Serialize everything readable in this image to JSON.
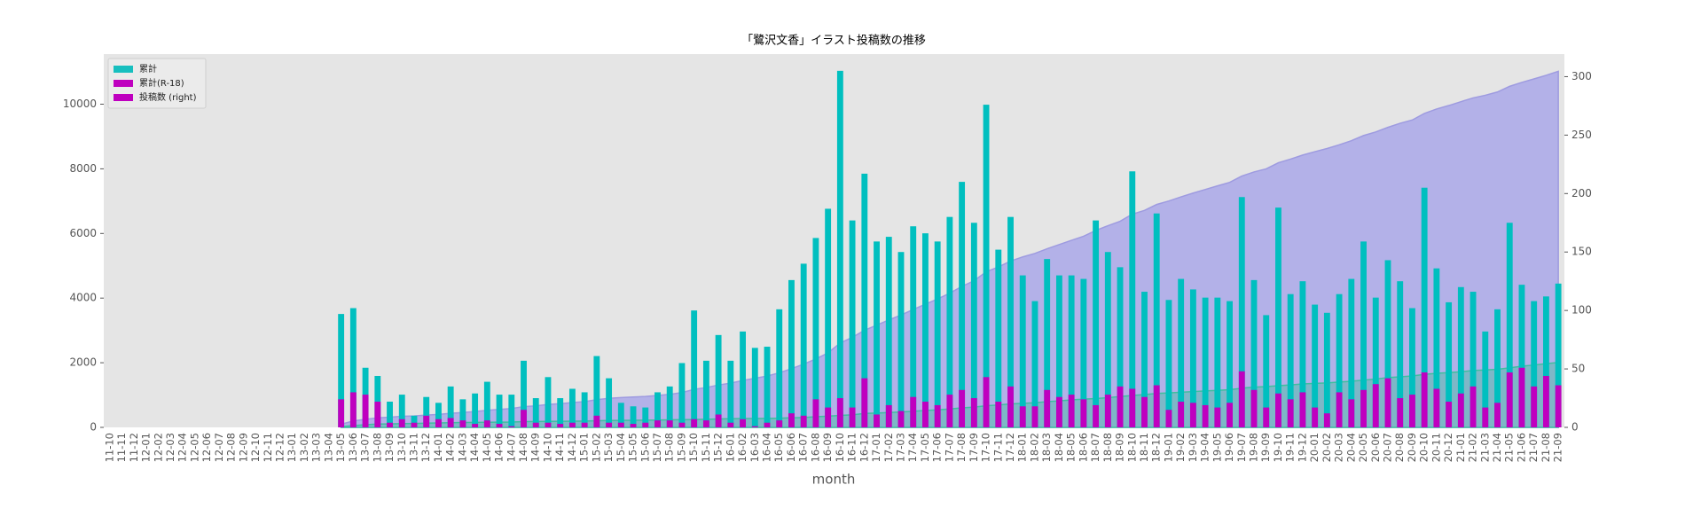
{
  "chart_data": {
    "type": "bar_area_combo",
    "title": "「鷺沢文香」イラスト投稿数の推移",
    "xlabel": "month",
    "categories": [
      "11-10",
      "11-11",
      "11-12",
      "12-01",
      "12-02",
      "12-03",
      "12-04",
      "12-05",
      "12-06",
      "12-07",
      "12-08",
      "12-09",
      "12-10",
      "12-11",
      "12-12",
      "13-01",
      "13-02",
      "13-03",
      "13-04",
      "13-05",
      "13-06",
      "13-07",
      "13-08",
      "13-09",
      "13-10",
      "13-11",
      "13-12",
      "14-01",
      "14-02",
      "14-03",
      "14-04",
      "14-05",
      "14-06",
      "14-07",
      "14-08",
      "14-09",
      "14-10",
      "14-11",
      "14-12",
      "15-01",
      "15-02",
      "15-03",
      "15-04",
      "15-05",
      "15-06",
      "15-07",
      "15-08",
      "15-09",
      "15-10",
      "15-11",
      "15-12",
      "16-01",
      "16-02",
      "16-03",
      "16-04",
      "16-05",
      "16-06",
      "16-07",
      "16-08",
      "16-09",
      "16-10",
      "16-11",
      "16-12",
      "17-01",
      "17-02",
      "17-03",
      "17-04",
      "17-05",
      "17-06",
      "17-07",
      "17-08",
      "17-09",
      "17-10",
      "17-11",
      "17-12",
      "18-01",
      "18-02",
      "18-03",
      "18-04",
      "18-05",
      "18-06",
      "18-07",
      "18-08",
      "18-09",
      "18-10",
      "18-11",
      "18-12",
      "19-01",
      "19-02",
      "19-03",
      "19-04",
      "19-05",
      "19-06",
      "19-07",
      "19-08",
      "19-09",
      "19-10",
      "19-11",
      "19-12",
      "20-01",
      "20-02",
      "20-03",
      "20-04",
      "20-05",
      "20-06",
      "20-07",
      "20-08",
      "20-09",
      "20-10",
      "20-11",
      "20-12",
      "21-01",
      "21-02",
      "21-03",
      "21-04",
      "21-05",
      "21-06",
      "21-07",
      "21-08",
      "21-09"
    ],
    "series": [
      {
        "name": "累計",
        "kind": "area",
        "color": "#b3b1e8",
        "edge_color": "#9e9be0",
        "legend_color": "#17bfbf",
        "values": [
          null,
          null,
          null,
          null,
          null,
          null,
          null,
          null,
          null,
          null,
          null,
          null,
          null,
          null,
          null,
          null,
          null,
          null,
          null,
          97,
          199,
          250,
          294,
          316,
          344,
          354,
          380,
          401,
          436,
          460,
          489,
          528,
          556,
          584,
          641,
          666,
          709,
          734,
          767,
          797,
          858,
          900,
          921,
          939,
          956,
          986,
          1021,
          1076,
          1176,
          1233,
          1312,
          1369,
          1451,
          1519,
          1588,
          1689,
          1815,
          1955,
          2117,
          2304,
          2609,
          2786,
          3003,
          3162,
          3325,
          3475,
          3647,
          3813,
          3972,
          4152,
          4362,
          4537,
          4813,
          4965,
          5145,
          5275,
          5383,
          5527,
          5657,
          5787,
          5914,
          6091,
          6241,
          6378,
          6597,
          6713,
          6896,
          7005,
          7132,
          7250,
          7361,
          7472,
          7580,
          7777,
          7903,
          7999,
          8187,
          8301,
          8426,
          8531,
          8629,
          8743,
          8870,
          9029,
          9140,
          9283,
          9408,
          9510,
          9715,
          9851,
          9958,
          10078,
          10194,
          10276,
          10377,
          10552,
          10674,
          10782,
          10894,
          11017
        ]
      },
      {
        "name": "累計(R-18)",
        "kind": "area",
        "color": "#3fbf9f",
        "edge_color": "#3fbf9f",
        "opacity": 0.45,
        "legend_color": "#bf00bf",
        "values": [
          null,
          null,
          null,
          null,
          null,
          null,
          null,
          null,
          null,
          null,
          null,
          null,
          null,
          null,
          null,
          null,
          null,
          null,
          null,
          24,
          54,
          82,
          104,
          108,
          115,
          119,
          129,
          136,
          144,
          150,
          153,
          159,
          162,
          163,
          178,
          182,
          186,
          189,
          193,
          197,
          207,
          211,
          215,
          218,
          222,
          228,
          234,
          238,
          245,
          251,
          262,
          266,
          273,
          274,
          278,
          284,
          296,
          306,
          330,
          347,
          372,
          389,
          431,
          442,
          461,
          475,
          501,
          523,
          542,
          570,
          602,
          627,
          670,
          692,
          727,
          745,
          763,
          795,
          821,
          849,
          873,
          892,
          920,
          955,
          988,
          1014,
          1050,
          1065,
          1087,
          1108,
          1127,
          1144,
          1165,
          1213,
          1245,
          1262,
          1291,
          1315,
          1345,
          1362,
          1374,
          1404,
          1428,
          1460,
          1497,
          1539,
          1564,
          1592,
          1639,
          1672,
          1694,
          1723,
          1758,
          1775,
          1796,
          1843,
          1894,
          1929,
          1973,
          2009
        ]
      },
      {
        "name": "投稿数 (right)",
        "kind": "bar",
        "axis": "y2",
        "color": "#00bfbf",
        "legend_color": "#bf00bf",
        "values": [
          null,
          null,
          null,
          null,
          null,
          null,
          null,
          null,
          null,
          null,
          null,
          null,
          null,
          null,
          null,
          null,
          null,
          null,
          null,
          97,
          102,
          51,
          44,
          22,
          28,
          10,
          26,
          21,
          35,
          24,
          29,
          39,
          28,
          28,
          57,
          25,
          43,
          25,
          33,
          30,
          61,
          42,
          21,
          18,
          17,
          30,
          35,
          55,
          100,
          57,
          79,
          57,
          82,
          68,
          69,
          101,
          126,
          140,
          162,
          187,
          305,
          177,
          217,
          159,
          163,
          150,
          172,
          166,
          159,
          180,
          210,
          175,
          276,
          152,
          180,
          130,
          108,
          144,
          130,
          130,
          127,
          177,
          150,
          137,
          219,
          116,
          183,
          109,
          127,
          118,
          111,
          111,
          108,
          197,
          126,
          96,
          188,
          114,
          125,
          105,
          98,
          114,
          127,
          159,
          111,
          143,
          125,
          102,
          205,
          136,
          107,
          120,
          116,
          82,
          101,
          175,
          122,
          108,
          112,
          123
        ]
      },
      {
        "kind": "bar",
        "axis": "y2",
        "color": "#bf00bf",
        "values": [
          null,
          null,
          null,
          null,
          null,
          null,
          null,
          null,
          null,
          null,
          null,
          null,
          null,
          null,
          null,
          null,
          null,
          null,
          null,
          24,
          30,
          28,
          22,
          4,
          7,
          4,
          10,
          7,
          8,
          6,
          3,
          6,
          3,
          1,
          15,
          4,
          4,
          3,
          4,
          4,
          10,
          4,
          4,
          3,
          4,
          6,
          6,
          4,
          7,
          6,
          11,
          4,
          7,
          1,
          4,
          6,
          12,
          10,
          24,
          17,
          25,
          17,
          42,
          11,
          19,
          14,
          26,
          22,
          19,
          28,
          32,
          25,
          43,
          22,
          35,
          18,
          18,
          32,
          26,
          28,
          24,
          19,
          28,
          35,
          33,
          26,
          36,
          15,
          22,
          21,
          19,
          17,
          21,
          48,
          32,
          17,
          29,
          24,
          30,
          17,
          12,
          30,
          24,
          32,
          37,
          42,
          25,
          28,
          47,
          33,
          22,
          29,
          35,
          17,
          21,
          47,
          51,
          35,
          44,
          36
        ]
      }
    ],
    "ylim": [
      0,
      11550
    ],
    "yticks": [
      0,
      2000,
      4000,
      6000,
      8000,
      10000
    ],
    "y2lim": [
      0,
      319.3
    ],
    "y2ticks": [
      0,
      50,
      100,
      150,
      200,
      250,
      300
    ],
    "grid": false,
    "legend": "upper left"
  }
}
